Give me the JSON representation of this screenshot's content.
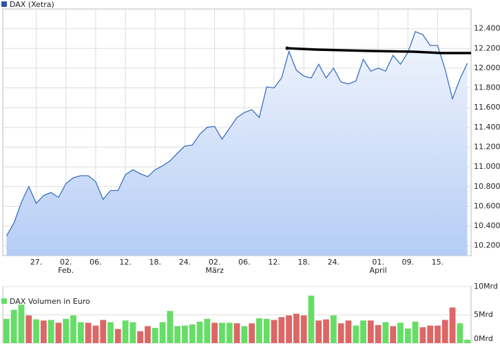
{
  "chart_data": [
    {
      "type": "area",
      "legend": "DAX (Xetra)",
      "color": "#3a6fc4",
      "categories": [
        null,
        null,
        null,
        null,
        "27.",
        null,
        null,
        null,
        "02.",
        null,
        null,
        null,
        "06.",
        null,
        null,
        null,
        "12.",
        null,
        null,
        null,
        "18.",
        null,
        null,
        null,
        "24.",
        null,
        null,
        null,
        "02.",
        null,
        null,
        null,
        "06.",
        null,
        null,
        null,
        "12.",
        null,
        null,
        null,
        "18.",
        null,
        null,
        null,
        "24.",
        null,
        null,
        null,
        null,
        null,
        "01.",
        null,
        null,
        null,
        "09.",
        null,
        null,
        null,
        "15.",
        null,
        null,
        null,
        null
      ],
      "month_labels": [
        null,
        null,
        null,
        null,
        null,
        null,
        null,
        null,
        "Feb.",
        null,
        null,
        null,
        null,
        null,
        null,
        null,
        null,
        null,
        null,
        null,
        null,
        null,
        null,
        null,
        null,
        null,
        null,
        null,
        "März",
        null,
        null,
        null,
        null,
        null,
        null,
        null,
        null,
        null,
        null,
        null,
        null,
        null,
        null,
        null,
        null,
        null,
        null,
        null,
        null,
        null,
        "April",
        null,
        null,
        null,
        null,
        null,
        null,
        null,
        null,
        null,
        null,
        null,
        null
      ],
      "values": [
        10300,
        10430,
        10640,
        10800,
        10630,
        10710,
        10740,
        10690,
        10830,
        10890,
        10910,
        10910,
        10850,
        10670,
        10760,
        10760,
        10920,
        10970,
        10930,
        10900,
        10970,
        11010,
        11060,
        11140,
        11210,
        11220,
        11330,
        11400,
        11410,
        11280,
        11390,
        11500,
        11550,
        11580,
        11500,
        11810,
        11800,
        11900,
        12170,
        11980,
        11920,
        11900,
        12040,
        11900,
        12000,
        11860,
        11840,
        11870,
        12090,
        11970,
        12000,
        11970,
        12130,
        12040,
        12160,
        12370,
        12340,
        12230,
        12230,
        11990,
        11690,
        11890,
        12050
      ],
      "ylim": [
        10100,
        12600
      ],
      "yticks": [
        {
          "value": 10200,
          "label": "10.200"
        },
        {
          "value": 10400,
          "label": "10.400"
        },
        {
          "value": 10600,
          "label": "10.600"
        },
        {
          "value": 10800,
          "label": "10.800"
        },
        {
          "value": 11000,
          "label": "11.000"
        },
        {
          "value": 11200,
          "label": "11.200"
        },
        {
          "value": 11400,
          "label": "11.400"
        },
        {
          "value": 11600,
          "label": "11.600"
        },
        {
          "value": 11800,
          "label": "11.800"
        },
        {
          "value": 12000,
          "label": "12.000"
        },
        {
          "value": 12200,
          "label": "12.200"
        },
        {
          "value": 12400,
          "label": "12.400"
        }
      ],
      "grid": true
    },
    {
      "type": "bar",
      "legend": "DAX Volumen in Euro",
      "legend_color": "#66dd66",
      "values": [
        4.3,
        5.9,
        6.8,
        4.9,
        4.2,
        4.0,
        4.1,
        3.6,
        4.3,
        4.9,
        3.7,
        3.6,
        3.1,
        4.1,
        3.7,
        2.5,
        4.0,
        3.7,
        2.1,
        3.0,
        2.7,
        3.7,
        5.7,
        3.0,
        3.1,
        3.3,
        3.8,
        4.3,
        3.6,
        3.6,
        3.6,
        3.5,
        3.0,
        3.5,
        4.4,
        4.3,
        4.1,
        4.6,
        4.9,
        5.2,
        4.9,
        8.4,
        4.0,
        4.2,
        4.9,
        3.5,
        4.0,
        3.1,
        4.0,
        4.0,
        3.2,
        3.7,
        3.0,
        3.6,
        2.6,
        3.8,
        2.8,
        3.1,
        3.1,
        4.1,
        6.3,
        3.5,
        0.6
      ],
      "colors": [
        "#66dd66",
        "#66dd66",
        "#66dd66",
        "#dd6666",
        "#66dd66",
        "#dd6666",
        "#66dd66",
        "#dd6666",
        "#66dd66",
        "#66dd66",
        "#66dd66",
        "#dd6666",
        "#dd6666",
        "#dd6666",
        "#66dd66",
        "#dd6666",
        "#66dd66",
        "#66dd66",
        "#dd6666",
        "#dd6666",
        "#66dd66",
        "#66dd66",
        "#66dd66",
        "#66dd66",
        "#66dd66",
        "#66dd66",
        "#66dd66",
        "#66dd66",
        "#dd6666",
        "#66dd66",
        "#66dd66",
        "#dd6666",
        "#66dd66",
        "#dd6666",
        "#66dd66",
        "#66dd66",
        "#dd6666",
        "#dd6666",
        "#dd6666",
        "#dd6666",
        "#dd6666",
        "#66dd66",
        "#dd6666",
        "#dd6666",
        "#66dd66",
        "#dd6666",
        "#dd6666",
        "#66dd66",
        "#66dd66",
        "#dd6666",
        "#dd6666",
        "#66dd66",
        "#dd6666",
        "#66dd66",
        "#66dd66",
        "#66dd66",
        "#dd6666",
        "#dd6666",
        "#dd6666",
        "#dd6666",
        "#dd6666",
        "#66dd66",
        "#66dd66"
      ],
      "ylim": [
        0,
        10
      ],
      "yticks": [
        {
          "value": 0,
          "label": "0Mrd"
        },
        {
          "value": 5,
          "label": "5Mrd"
        },
        {
          "value": 10,
          "label": "10Mrd"
        }
      ],
      "grid": true
    }
  ]
}
